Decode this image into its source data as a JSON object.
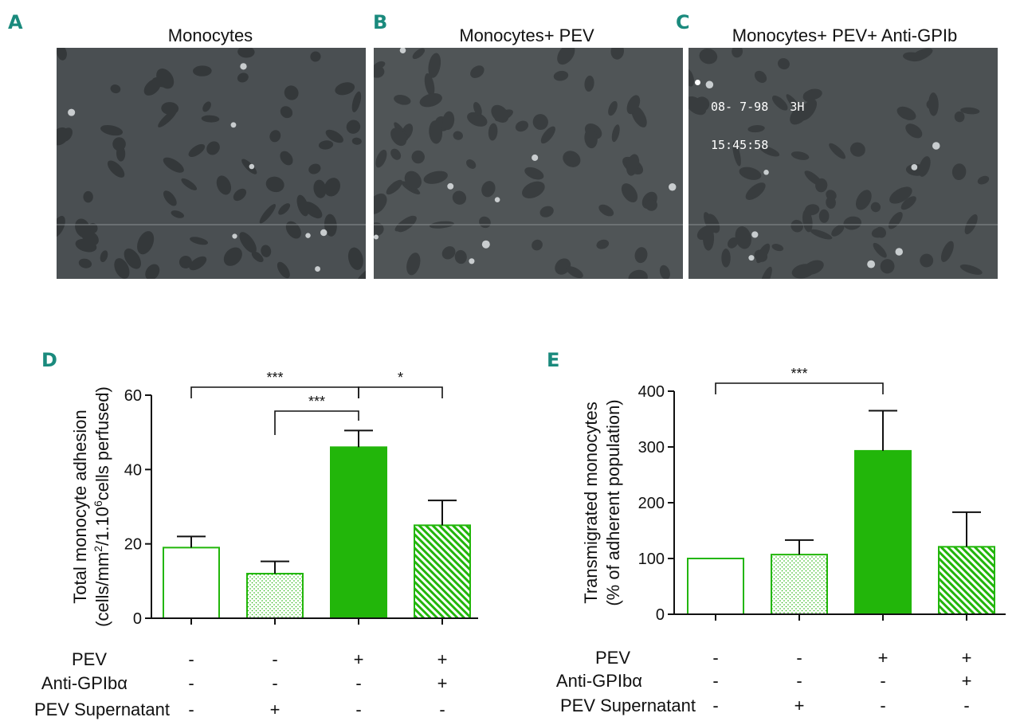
{
  "panels": {
    "a": {
      "letter": "A",
      "title": "Monocytes"
    },
    "b": {
      "letter": "B",
      "title": "Monocytes+ PEV"
    },
    "c": {
      "letter": "C",
      "title": "Monocytes+ PEV+ Anti-GPIb",
      "stamp_line1": "08- 7-98   3H",
      "stamp_line2": "15:45:58"
    }
  },
  "colors": {
    "green": "#22b60a",
    "letter": "#1a8a7d",
    "axis": "#111111",
    "micro_bg": "#4d5254"
  },
  "chart_data": [
    {
      "type": "bar",
      "panel": "D",
      "ylabel_line1": "Total monocyte adhesion",
      "ylabel_line2_pre": "(cells/mm",
      "ylabel_sup1": "2",
      "ylabel_mid": "/1.10",
      "ylabel_sup2": "6",
      "ylabel_post": "cells perfused)",
      "ylim": [
        0,
        60
      ],
      "yticks": [
        0,
        20,
        40,
        60
      ],
      "values": [
        19,
        12,
        46,
        25
      ],
      "errors": [
        3,
        3.3,
        4.5,
        6.7
      ],
      "fills": [
        "open",
        "dotted",
        "solid",
        "hatched"
      ],
      "conditions": [
        {
          "label": "PEV",
          "signs": [
            "-",
            "-",
            "+",
            "+"
          ]
        },
        {
          "label": "Anti-GPIbα",
          "signs": [
            "-",
            "-",
            "-",
            "+"
          ]
        },
        {
          "label": "PEV Supernatant",
          "signs": [
            "-",
            "+",
            "-",
            "-"
          ]
        }
      ],
      "significance": [
        {
          "from": 0,
          "to": 2,
          "label": "***"
        },
        {
          "from": 1,
          "to": 2,
          "label": "***"
        },
        {
          "from": 2,
          "to": 3,
          "label": "*"
        }
      ]
    },
    {
      "type": "bar",
      "panel": "E",
      "ylabel_line1": "Transmigrated monocytes",
      "ylabel_line2": "(% of adherent population)",
      "ylim": [
        0,
        400
      ],
      "yticks": [
        0,
        100,
        200,
        300,
        400
      ],
      "values": [
        100,
        107,
        293,
        121
      ],
      "errors": [
        0,
        26,
        72,
        62
      ],
      "fills": [
        "open",
        "dotted",
        "solid",
        "hatched"
      ],
      "conditions": [
        {
          "label": "PEV",
          "signs": [
            "-",
            "-",
            "+",
            "+"
          ]
        },
        {
          "label": "Anti-GPIbα",
          "signs": [
            "-",
            "-",
            "-",
            "+"
          ]
        },
        {
          "label": "PEV Supernatant",
          "signs": [
            "-",
            "+",
            "-",
            "-"
          ]
        }
      ],
      "significance": [
        {
          "from": 0,
          "to": 2,
          "label": "***"
        }
      ]
    }
  ]
}
